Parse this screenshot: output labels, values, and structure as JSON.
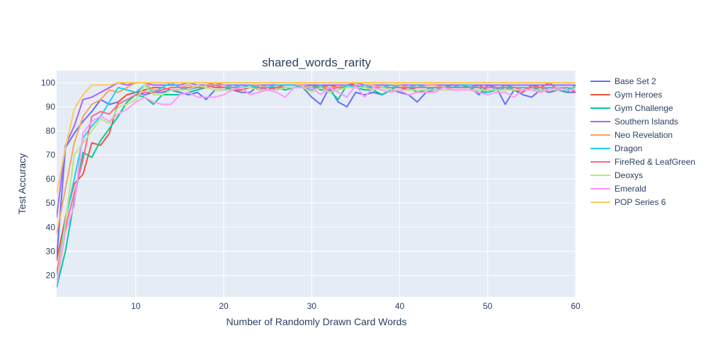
{
  "chart_data": {
    "type": "line",
    "title": "shared_words_rarity",
    "xlabel": "Number of Randomly Drawn Card Words",
    "ylabel": "Test Accuracy",
    "xlim": [
      1,
      60
    ],
    "ylim": [
      11,
      105
    ],
    "xticks": [
      10,
      20,
      30,
      40,
      50,
      60
    ],
    "yticks": [
      20,
      30,
      40,
      50,
      60,
      70,
      80,
      90,
      100
    ],
    "grid": true,
    "legend_position": "right",
    "plot_background": "#e5ecf6",
    "series": [
      {
        "name": "Base Set 2",
        "color": "#636efa",
        "values": [
          27,
          73,
          79,
          84,
          88,
          93,
          91,
          92,
          95,
          96,
          95,
          96,
          96,
          97,
          96,
          95,
          96,
          93,
          97,
          97,
          97,
          96,
          96,
          99,
          98,
          97,
          98,
          98,
          98,
          94,
          91,
          98,
          92,
          90,
          96,
          95,
          96,
          95,
          97,
          96,
          95,
          92,
          96,
          97,
          98,
          98,
          98,
          98,
          95,
          99,
          98,
          91,
          97,
          95,
          94,
          97,
          96,
          97,
          96,
          96
        ]
      },
      {
        "name": "Gym Heroes",
        "color": "#ef553b",
        "values": [
          26,
          44,
          58,
          62,
          75,
          74,
          79,
          92,
          95,
          96,
          97,
          98,
          98,
          97,
          97,
          98,
          98,
          99,
          98,
          98,
          97,
          97,
          98,
          97,
          98,
          98,
          99,
          99,
          98,
          99,
          98,
          99,
          98,
          99,
          99,
          98,
          98,
          98,
          99,
          98,
          97,
          98,
          99,
          99,
          98,
          98,
          99,
          98,
          99,
          97,
          97,
          98,
          97,
          96,
          99,
          98,
          100,
          97,
          98,
          96
        ]
      },
      {
        "name": "Gym Challenge",
        "color": "#00cc96",
        "values": [
          15,
          30,
          51,
          71,
          69,
          76,
          81,
          86,
          92,
          95,
          94,
          91,
          95,
          95,
          95,
          96,
          97,
          98,
          99,
          98,
          97,
          98,
          99,
          97,
          97,
          98,
          97,
          98,
          98,
          99,
          97,
          97,
          93,
          99,
          98,
          97,
          97,
          95,
          97,
          99,
          98,
          96,
          97,
          98,
          98,
          99,
          99,
          98,
          96,
          96,
          97,
          99,
          98,
          98,
          98,
          97,
          98,
          98,
          96,
          99
        ]
      },
      {
        "name": "Southern Islands",
        "color": "#ab63fa",
        "values": [
          44,
          74,
          82,
          93,
          94,
          96,
          98,
          100,
          99,
          100,
          100,
          99,
          99,
          99,
          99,
          100,
          99,
          99,
          100,
          99,
          99,
          99,
          99,
          99,
          99,
          99,
          99,
          99,
          99,
          99,
          99,
          99,
          99,
          99,
          100,
          99,
          99,
          99,
          99,
          99,
          99,
          99,
          99,
          99,
          99,
          99,
          99,
          99,
          99,
          99,
          99,
          99,
          99,
          99,
          99,
          99,
          99,
          99,
          99,
          99
        ]
      },
      {
        "name": "Neo Revelation",
        "color": "#ffa15a",
        "values": [
          37,
          56,
          75,
          86,
          91,
          93,
          97,
          96,
          98,
          100,
          100,
          97,
          97,
          98,
          98,
          99,
          98,
          99,
          99,
          99,
          98,
          98,
          99,
          99,
          98,
          99,
          99,
          99,
          99,
          98,
          98,
          98,
          98,
          99,
          98,
          99,
          99,
          98,
          99,
          99,
          98,
          98,
          99,
          99,
          98,
          98,
          98,
          98,
          98,
          98,
          98,
          98,
          98,
          98,
          98,
          98,
          98,
          98,
          98,
          98
        ]
      },
      {
        "name": "Dragon",
        "color": "#19d3f3",
        "values": [
          20,
          43,
          60,
          77,
          82,
          86,
          92,
          98,
          97,
          96,
          99,
          96,
          98,
          100,
          98,
          97,
          98,
          98,
          99,
          98,
          99,
          98,
          99,
          98,
          98,
          99,
          99,
          99,
          98,
          97,
          99,
          96,
          97,
          99,
          98,
          99,
          98,
          98,
          99,
          98,
          98,
          99,
          98,
          97,
          98,
          98,
          99,
          99,
          98,
          96,
          98,
          97,
          98,
          98,
          98,
          98,
          98,
          98,
          98,
          97
        ]
      },
      {
        "name": "FireRed & LeafGreen",
        "color": "#ff6692",
        "values": [
          21,
          40,
          54,
          68,
          86,
          88,
          87,
          91,
          93,
          95,
          96,
          96,
          97,
          98,
          98,
          98,
          98,
          98,
          99,
          98,
          98,
          98,
          98,
          98,
          97,
          98,
          98,
          98,
          98,
          98,
          98,
          97,
          98,
          98,
          98,
          98,
          98,
          98,
          98,
          98,
          98,
          98,
          98,
          98,
          98,
          98,
          98,
          98,
          98,
          98,
          98,
          98,
          98,
          97,
          98,
          98,
          97,
          98,
          97,
          97
        ]
      },
      {
        "name": "Deoxys",
        "color": "#b6e880",
        "values": [
          17,
          42,
          70,
          75,
          80,
          85,
          83,
          90,
          91,
          93,
          99,
          95,
          95,
          97,
          97,
          97,
          99,
          98,
          97,
          97,
          97,
          98,
          98,
          97,
          97,
          97,
          98,
          98,
          98,
          96,
          98,
          96,
          97,
          98,
          98,
          98,
          97,
          98,
          97,
          97,
          97,
          97,
          97,
          97,
          97,
          97,
          97,
          97,
          97,
          97,
          97,
          97,
          97,
          97,
          97,
          97,
          97,
          97,
          97,
          97
        ]
      },
      {
        "name": "Emerald",
        "color": "#ff97ff",
        "values": [
          16,
          38,
          49,
          79,
          84,
          86,
          84,
          87,
          89,
          92,
          94,
          92,
          91,
          91,
          95,
          96,
          94,
          94,
          94,
          95,
          97,
          98,
          95,
          96,
          97,
          96,
          94,
          98,
          98,
          98,
          95,
          98,
          96,
          94,
          99,
          94,
          98,
          97,
          96,
          97,
          95,
          96,
          96,
          96,
          98,
          97,
          97,
          97,
          96,
          95,
          96,
          96,
          94,
          97,
          97,
          96,
          97,
          98,
          97,
          97
        ]
      },
      {
        "name": "POP Series 6",
        "color": "#fecb52",
        "values": [
          54,
          73,
          89,
          95,
          99,
          99,
          99,
          100,
          100,
          100,
          100,
          100,
          100,
          100,
          100,
          100,
          100,
          100,
          100,
          100,
          100,
          100,
          100,
          100,
          100,
          100,
          100,
          100,
          100,
          100,
          100,
          100,
          100,
          100,
          100,
          100,
          100,
          100,
          100,
          100,
          100,
          100,
          100,
          100,
          100,
          100,
          100,
          100,
          100,
          100,
          100,
          100,
          100,
          100,
          100,
          100,
          100,
          100,
          100,
          100
        ]
      }
    ]
  }
}
